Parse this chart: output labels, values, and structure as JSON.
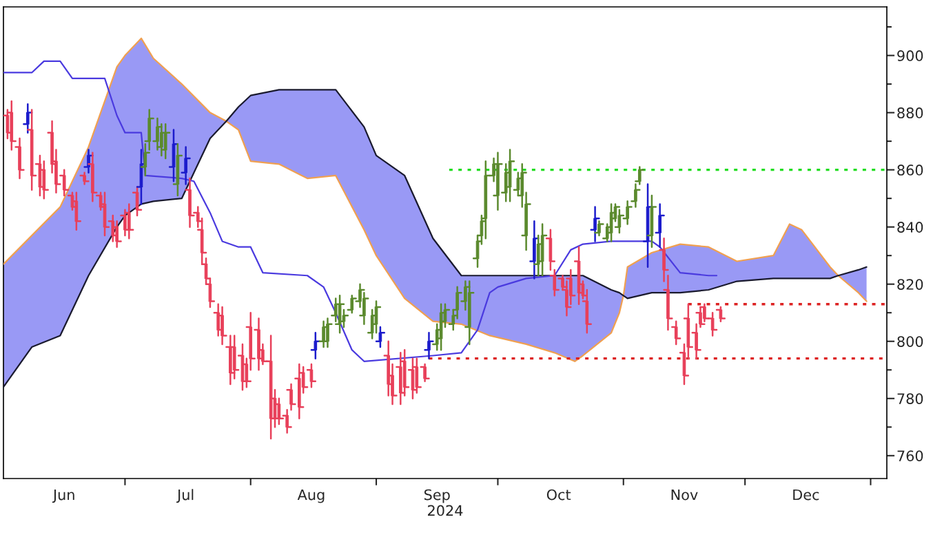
{
  "chart_data": {
    "type": "candlestick",
    "x": [
      "2024-06-02",
      "2024-06-03",
      "2024-06-05",
      "2024-06-07",
      "2024-06-08",
      "2024-06-10",
      "2024-06-11",
      "2024-06-13",
      "2024-06-14",
      "2024-06-16",
      "2024-06-18",
      "2024-06-19",
      "2024-06-21",
      "2024-06-22",
      "2024-06-23",
      "2024-06-25",
      "2024-06-26",
      "2024-06-28",
      "2024-06-29",
      "2024-07-01",
      "2024-07-02",
      "2024-07-04",
      "2024-07-05",
      "2024-07-06",
      "2024-07-07",
      "2024-07-09",
      "2024-07-10",
      "2024-07-11",
      "2024-07-13",
      "2024-07-14",
      "2024-07-16",
      "2024-07-17",
      "2024-07-19",
      "2024-07-20",
      "2024-07-21",
      "2024-07-22",
      "2024-07-24",
      "2024-07-25",
      "2024-07-27",
      "2024-07-28",
      "2024-07-30",
      "2024-07-31",
      "2024-08-01",
      "2024-08-03",
      "2024-08-04",
      "2024-08-06",
      "2024-08-07",
      "2024-08-08",
      "2024-08-10",
      "2024-08-11",
      "2024-08-13",
      "2024-08-14",
      "2024-08-16",
      "2024-08-17",
      "2024-08-19",
      "2024-08-20",
      "2024-08-22",
      "2024-08-23",
      "2024-08-24",
      "2024-08-26",
      "2024-08-28",
      "2024-08-29",
      "2024-08-31",
      "2024-09-01",
      "2024-09-02",
      "2024-09-04",
      "2024-09-05",
      "2024-09-07",
      "2024-09-08",
      "2024-09-10",
      "2024-09-11",
      "2024-09-13",
      "2024-09-14",
      "2024-09-16",
      "2024-09-17",
      "2024-09-18",
      "2024-09-20",
      "2024-09-21",
      "2024-09-23",
      "2024-09-24",
      "2024-09-26",
      "2024-09-27",
      "2024-09-28",
      "2024-09-30",
      "2024-10-01",
      "2024-10-03",
      "2024-10-04",
      "2024-10-06",
      "2024-10-07",
      "2024-10-08",
      "2024-10-10",
      "2024-10-11",
      "2024-10-12",
      "2024-10-14",
      "2024-10-15",
      "2024-10-17",
      "2024-10-18",
      "2024-10-19",
      "2024-10-21",
      "2024-10-22",
      "2024-10-23",
      "2024-10-25",
      "2024-10-26",
      "2024-10-28",
      "2024-10-29",
      "2024-10-30",
      "2024-10-31",
      "2024-11-02",
      "2024-11-04",
      "2024-11-05",
      "2024-11-07",
      "2024-11-08",
      "2024-11-10",
      "2024-11-11",
      "2024-11-12",
      "2024-11-14",
      "2024-11-16",
      "2024-11-17",
      "2024-11-19",
      "2024-11-20",
      "2024-11-21",
      "2024-11-23",
      "2024-11-25"
    ],
    "ohlc": [
      [
        879,
        881,
        871,
        873
      ],
      [
        880,
        884,
        867,
        870
      ],
      [
        868,
        871,
        857,
        860
      ],
      [
        876,
        883,
        873,
        880
      ],
      [
        874,
        881,
        853,
        858
      ],
      [
        862,
        865,
        851,
        854
      ],
      [
        860,
        863,
        850,
        853
      ],
      [
        873,
        877,
        859,
        862
      ],
      [
        863,
        867,
        852,
        855
      ],
      [
        858,
        860,
        851,
        853
      ],
      [
        851,
        852,
        846,
        847
      ],
      [
        849,
        852,
        839,
        842
      ],
      [
        858,
        859,
        855,
        856
      ],
      [
        861,
        867,
        859,
        865
      ],
      [
        862,
        866,
        849,
        852
      ],
      [
        851,
        852,
        846,
        847
      ],
      [
        848,
        852,
        837,
        840
      ],
      [
        842,
        844,
        835,
        837
      ],
      [
        840,
        842,
        833,
        835
      ],
      [
        844,
        846,
        837,
        839
      ],
      [
        845,
        848,
        836,
        839
      ],
      [
        852,
        854,
        844,
        846
      ],
      [
        854,
        867,
        848,
        862
      ],
      [
        861,
        869,
        858,
        866
      ],
      [
        870,
        881,
        867,
        878
      ],
      [
        870,
        878,
        867,
        875
      ],
      [
        868,
        876,
        865,
        873
      ],
      [
        867,
        876,
        864,
        873
      ],
      [
        861,
        874,
        856,
        869
      ],
      [
        855,
        869,
        851,
        865
      ],
      [
        859,
        868,
        855,
        864
      ],
      [
        853,
        857,
        840,
        844
      ],
      [
        845,
        847,
        840,
        842
      ],
      [
        839,
        843,
        827,
        831
      ],
      [
        827,
        829,
        820,
        822
      ],
      [
        820,
        822,
        812,
        814
      ],
      [
        810,
        813,
        802,
        804
      ],
      [
        809,
        812,
        799,
        802
      ],
      [
        798,
        802,
        785,
        789
      ],
      [
        798,
        802,
        787,
        790
      ],
      [
        795,
        799,
        783,
        786
      ],
      [
        792,
        794,
        784,
        786
      ],
      [
        805,
        810,
        790,
        794
      ],
      [
        804,
        808,
        790,
        794
      ],
      [
        797,
        799,
        792,
        793
      ],
      [
        793,
        802,
        766,
        773
      ],
      [
        780,
        783,
        770,
        773
      ],
      [
        778,
        780,
        771,
        773
      ],
      [
        774,
        776,
        768,
        770
      ],
      [
        783,
        785,
        776,
        778
      ],
      [
        787,
        792,
        773,
        777
      ],
      [
        789,
        791,
        782,
        784
      ],
      [
        790,
        792,
        784,
        786
      ],
      [
        797,
        803,
        794,
        800
      ],
      [
        800,
        807,
        798,
        805
      ],
      [
        800,
        808,
        798,
        806
      ],
      [
        809,
        815,
        807,
        813
      ],
      [
        806,
        816,
        803,
        813
      ],
      [
        807,
        811,
        805,
        809
      ],
      [
        811,
        816,
        810,
        815
      ],
      [
        814,
        820,
        812,
        818
      ],
      [
        809,
        817,
        806,
        815
      ],
      [
        803,
        811,
        801,
        809
      ],
      [
        806,
        814,
        803,
        812
      ],
      [
        800,
        805,
        798,
        803
      ],
      [
        795,
        800,
        781,
        785
      ],
      [
        788,
        792,
        778,
        781
      ],
      [
        791,
        796,
        778,
        782
      ],
      [
        793,
        797,
        781,
        784
      ],
      [
        790,
        794,
        780,
        783
      ],
      [
        791,
        794,
        782,
        784
      ],
      [
        791,
        792,
        786,
        787
      ],
      [
        797,
        803,
        794,
        800
      ],
      [
        799,
        806,
        797,
        804
      ],
      [
        801,
        813,
        797,
        810
      ],
      [
        807,
        813,
        805,
        811
      ],
      [
        806,
        811,
        804,
        809
      ],
      [
        811,
        819,
        808,
        817
      ],
      [
        814,
        821,
        811,
        819
      ],
      [
        805,
        821,
        799,
        817
      ],
      [
        829,
        837,
        826,
        835
      ],
      [
        837,
        844,
        834,
        842
      ],
      [
        843,
        863,
        836,
        858
      ],
      [
        858,
        864,
        856,
        862
      ],
      [
        851,
        866,
        846,
        862
      ],
      [
        852,
        862,
        849,
        859
      ],
      [
        854,
        867,
        849,
        863
      ],
      [
        853,
        859,
        851,
        857
      ],
      [
        851,
        862,
        847,
        859
      ],
      [
        837,
        852,
        832,
        848
      ],
      [
        828,
        842,
        822,
        836
      ],
      [
        827,
        837,
        823,
        834
      ],
      [
        828,
        841,
        823,
        837
      ],
      [
        836,
        839,
        825,
        828
      ],
      [
        823,
        825,
        816,
        818
      ],
      [
        822,
        823,
        818,
        819
      ],
      [
        818,
        821,
        809,
        812
      ],
      [
        822,
        825,
        813,
        816
      ],
      [
        828,
        833,
        813,
        817
      ],
      [
        820,
        821,
        815,
        816
      ],
      [
        814,
        818,
        803,
        806
      ],
      [
        839,
        847,
        835,
        843
      ],
      [
        838,
        842,
        837,
        841
      ],
      [
        836,
        841,
        835,
        840
      ],
      [
        838,
        848,
        835,
        845
      ],
      [
        843,
        848,
        842,
        847
      ],
      [
        840,
        846,
        838,
        844
      ],
      [
        843,
        849,
        841,
        847
      ],
      [
        849,
        855,
        847,
        853
      ],
      [
        856,
        861,
        855,
        860
      ],
      [
        835,
        855,
        826,
        847
      ],
      [
        837,
        851,
        833,
        847
      ],
      [
        838,
        848,
        833,
        844
      ],
      [
        832,
        836,
        821,
        825
      ],
      [
        818,
        823,
        804,
        808
      ],
      [
        805,
        807,
        799,
        801
      ],
      [
        796,
        799,
        785,
        788
      ],
      [
        808,
        813,
        794,
        798
      ],
      [
        803,
        806,
        794,
        797
      ],
      [
        810,
        812,
        805,
        806
      ],
      [
        812,
        813,
        807,
        808
      ],
      [
        808,
        810,
        802,
        804
      ],
      [
        811,
        812,
        807,
        808
      ]
    ],
    "colors": [
      "#e8405a",
      "#e8405a",
      "#e8405a",
      "#1c1ccc",
      "#e8405a",
      "#e8405a",
      "#e8405a",
      "#e8405a",
      "#e8405a",
      "#e8405a",
      "#e8405a",
      "#e8405a",
      "#e8405a",
      "#1c1ccc",
      "#e8405a",
      "#e8405a",
      "#e8405a",
      "#e8405a",
      "#e8405a",
      "#e8405a",
      "#e8405a",
      "#e8405a",
      "#1c1ccc",
      "#5b8a2e",
      "#5b8a2e",
      "#5b8a2e",
      "#5b8a2e",
      "#5b8a2e",
      "#1c1ccc",
      "#5b8a2e",
      "#1c1ccc",
      "#e8405a",
      "#e8405a",
      "#e8405a",
      "#e8405a",
      "#e8405a",
      "#e8405a",
      "#e8405a",
      "#e8405a",
      "#e8405a",
      "#e8405a",
      "#e8405a",
      "#e8405a",
      "#e8405a",
      "#e8405a",
      "#e8405a",
      "#e8405a",
      "#e8405a",
      "#e8405a",
      "#e8405a",
      "#e8405a",
      "#e8405a",
      "#e8405a",
      "#1c1ccc",
      "#5b8a2e",
      "#5b8a2e",
      "#5b8a2e",
      "#5b8a2e",
      "#5b8a2e",
      "#5b8a2e",
      "#5b8a2e",
      "#5b8a2e",
      "#5b8a2e",
      "#5b8a2e",
      "#1c1ccc",
      "#e8405a",
      "#e8405a",
      "#e8405a",
      "#e8405a",
      "#e8405a",
      "#e8405a",
      "#e8405a",
      "#1c1ccc",
      "#5b8a2e",
      "#5b8a2e",
      "#5b8a2e",
      "#5b8a2e",
      "#5b8a2e",
      "#5b8a2e",
      "#5b8a2e",
      "#5b8a2e",
      "#5b8a2e",
      "#5b8a2e",
      "#5b8a2e",
      "#5b8a2e",
      "#5b8a2e",
      "#5b8a2e",
      "#5b8a2e",
      "#5b8a2e",
      "#5b8a2e",
      "#1c1ccc",
      "#5b8a2e",
      "#5b8a2e",
      "#e8405a",
      "#e8405a",
      "#e8405a",
      "#e8405a",
      "#e8405a",
      "#e8405a",
      "#e8405a",
      "#e8405a",
      "#1c1ccc",
      "#5b8a2e",
      "#5b8a2e",
      "#5b8a2e",
      "#5b8a2e",
      "#5b8a2e",
      "#5b8a2e",
      "#5b8a2e",
      "#5b8a2e",
      "#1c1ccc",
      "#5b8a2e",
      "#1c1ccc",
      "#e8405a",
      "#e8405a",
      "#e8405a",
      "#e8405a",
      "#e8405a",
      "#e8405a",
      "#e8405a",
      "#e8405a",
      "#e8405a",
      "#e8405a"
    ],
    "series": [
      {
        "type": "line",
        "color": "#f0a050",
        "x": [
          "2024-06-01",
          "2024-06-08",
          "2024-06-15",
          "2024-06-22",
          "2024-06-29",
          "2024-07-01",
          "2024-07-05",
          "2024-07-08",
          "2024-07-15",
          "2024-07-22",
          "2024-07-26",
          "2024-07-29",
          "2024-08-01",
          "2024-08-08",
          "2024-08-15",
          "2024-08-22",
          "2024-08-29",
          "2024-09-01",
          "2024-09-08",
          "2024-09-15",
          "2024-09-22",
          "2024-09-29",
          "2024-10-08",
          "2024-10-15",
          "2024-10-20",
          "2024-10-22",
          "2024-10-29",
          "2024-10-31",
          "2024-11-01",
          "2024-11-02",
          "2024-11-08",
          "2024-11-15",
          "2024-11-22",
          "2024-11-29",
          "2024-12-08",
          "2024-12-12",
          "2024-12-15",
          "2024-12-22",
          "2024-12-24",
          "2024-12-29",
          "2024-12-31"
        ],
        "values": [
          827,
          837,
          847,
          868,
          896,
          900,
          906,
          899,
          890,
          880,
          877,
          874,
          863,
          862,
          857,
          858,
          839,
          830,
          815,
          807,
          806,
          802,
          799,
          796,
          793,
          795,
          803,
          810,
          816,
          826,
          831,
          834,
          833,
          828,
          830,
          841,
          839,
          826,
          823,
          817,
          814
        ],
        "upper": [
          827,
          837,
          847,
          868,
          896,
          900,
          906,
          899,
          890,
          880,
          877,
          874,
          863,
          862,
          857,
          858,
          839,
          830,
          815,
          807,
          806,
          802,
          799,
          796,
          793,
          795,
          803,
          810,
          816,
          826,
          831,
          834,
          833,
          828,
          830,
          841,
          839,
          826,
          823,
          817,
          814
        ],
        "lower": [
          784,
          798,
          802,
          823,
          840,
          844,
          848,
          849,
          850,
          871,
          877,
          882,
          886,
          888,
          888,
          888,
          875,
          865,
          858,
          836,
          823,
          823,
          823,
          823,
          823,
          823,
          818,
          817,
          816,
          815,
          817,
          817,
          818,
          821,
          822,
          822,
          822,
          822,
          823,
          825,
          826
        ]
      },
      {
        "type": "line",
        "color": "#1a1a2e",
        "x": [
          "2024-06-01",
          "2024-06-08",
          "2024-06-15",
          "2024-06-22",
          "2024-06-29",
          "2024-07-01",
          "2024-07-05",
          "2024-07-08",
          "2024-07-15",
          "2024-07-22",
          "2024-07-26",
          "2024-07-29",
          "2024-08-01",
          "2024-08-08",
          "2024-08-15",
          "2024-08-22",
          "2024-08-29",
          "2024-09-01",
          "2024-09-08",
          "2024-09-15",
          "2024-09-22",
          "2024-09-29",
          "2024-10-08",
          "2024-10-15",
          "2024-10-20",
          "2024-10-22",
          "2024-10-29",
          "2024-10-31",
          "2024-11-01",
          "2024-11-02",
          "2024-11-08",
          "2024-11-15",
          "2024-11-22",
          "2024-11-29",
          "2024-12-08",
          "2024-12-12",
          "2024-12-15",
          "2024-12-22",
          "2024-12-24",
          "2024-12-29",
          "2024-12-31"
        ],
        "values": [
          784,
          798,
          802,
          823,
          840,
          844,
          848,
          849,
          850,
          871,
          877,
          882,
          886,
          888,
          888,
          888,
          875,
          865,
          858,
          836,
          823,
          823,
          823,
          823,
          823,
          823,
          818,
          817,
          816,
          815,
          817,
          817,
          818,
          821,
          822,
          822,
          822,
          822,
          823,
          825,
          826
        ]
      },
      {
        "type": "line",
        "color": "#4a3adf",
        "x": [
          "2024-06-01",
          "2024-06-08",
          "2024-06-11",
          "2024-06-15",
          "2024-06-18",
          "2024-06-26",
          "2024-06-29",
          "2024-07-01",
          "2024-07-05",
          "2024-07-06",
          "2024-07-15",
          "2024-07-18",
          "2024-07-22",
          "2024-07-25",
          "2024-07-29",
          "2024-08-01",
          "2024-08-04",
          "2024-08-15",
          "2024-08-19",
          "2024-08-22",
          "2024-08-26",
          "2024-08-29",
          "2024-09-15",
          "2024-09-22",
          "2024-09-26",
          "2024-09-29",
          "2024-10-01",
          "2024-10-08",
          "2024-10-15",
          "2024-10-19",
          "2024-10-22",
          "2024-10-29",
          "2024-11-08",
          "2024-11-10",
          "2024-11-15",
          "2024-11-22",
          "2024-11-24"
        ],
        "values": [
          894,
          894,
          898,
          898,
          892,
          892,
          879,
          873,
          873,
          858,
          857,
          856,
          845,
          835,
          833,
          833,
          824,
          823,
          819,
          810,
          797,
          793,
          795,
          796,
          804,
          817,
          819,
          822,
          823,
          832,
          834,
          835,
          835,
          833,
          824,
          823,
          823
        ]
      },
      {
        "type": "line",
        "color": "#22dd22",
        "line_style": "dotted",
        "x": [
          "2024-09-19",
          "2025-01-05"
        ],
        "values": [
          860,
          860
        ]
      },
      {
        "type": "line",
        "color": "#dd2222",
        "line_style": "dotted",
        "x": [
          "2024-11-17",
          "2025-01-05"
        ],
        "values": [
          813,
          813
        ]
      },
      {
        "type": "line",
        "color": "#dd2222",
        "line_style": "dotted",
        "x": [
          "2024-09-14",
          "2025-01-05"
        ],
        "values": [
          794,
          794
        ]
      }
    ],
    "xlabel": "2024",
    "xlim": [
      "2024-06-01",
      "2025-01-05"
    ],
    "xticks": [
      {
        "value": "2024-06-16",
        "label": "Jun"
      },
      {
        "value": "2024-07-01",
        "label": null
      },
      {
        "value": "2024-07-16",
        "label": "Jul"
      },
      {
        "value": "2024-08-01",
        "label": null
      },
      {
        "value": "2024-08-16",
        "label": "Aug"
      },
      {
        "value": "2024-09-01",
        "label": null
      },
      {
        "value": "2024-09-16",
        "label": "Sep"
      },
      {
        "value": "2024-10-01",
        "label": null
      },
      {
        "value": "2024-10-16",
        "label": "Oct"
      },
      {
        "value": "2024-11-01",
        "label": null
      },
      {
        "value": "2024-11-16",
        "label": "Nov"
      },
      {
        "value": "2024-12-01",
        "label": null
      },
      {
        "value": "2024-12-16",
        "label": "Dec"
      },
      {
        "value": "2025-01-01",
        "label": null
      }
    ],
    "ylim": [
      752,
      917
    ],
    "yticks": [
      760,
      {
        "value": 770,
        "label": null
      },
      780,
      {
        "value": 790,
        "label": null
      },
      800,
      {
        "value": 810,
        "label": null
      },
      820,
      {
        "value": 830,
        "label": null
      },
      840,
      {
        "value": 850,
        "label": null
      },
      860,
      {
        "value": 870,
        "label": null
      },
      880,
      {
        "value": 890,
        "label": null
      },
      900,
      {
        "value": 910,
        "label": null
      }
    ],
    "grid": false,
    "legend": false
  }
}
